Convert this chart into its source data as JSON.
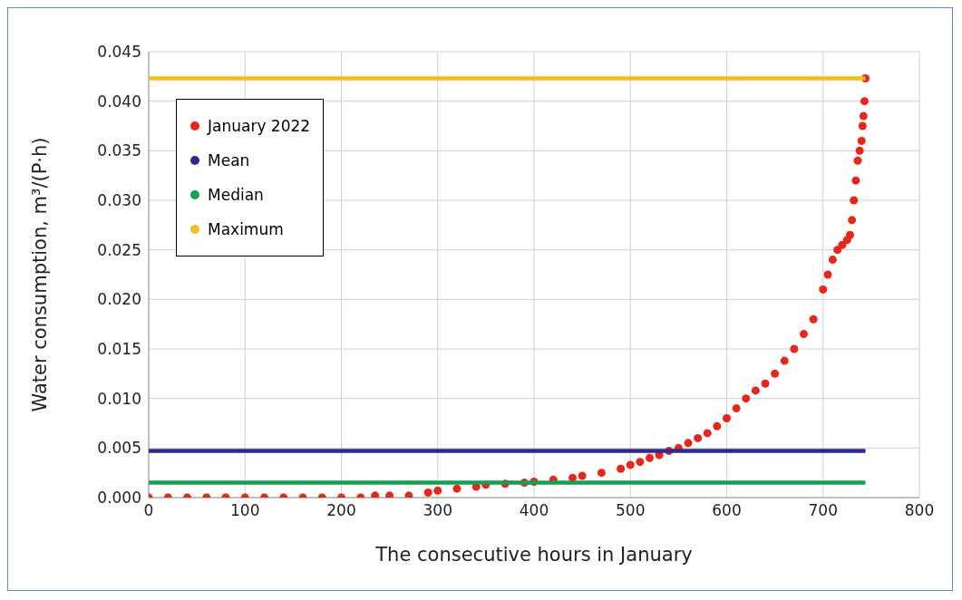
{
  "chart_data": {
    "type": "scatter",
    "xlabel": "The consecutive hours in January",
    "ylabel": "Water consumption, m³/(P·h)",
    "xlim": [
      0,
      800
    ],
    "xticks": [
      0,
      100,
      200,
      300,
      400,
      500,
      600,
      700,
      800
    ],
    "ylim": [
      0,
      0.045
    ],
    "yticks": [
      {
        "value": 0,
        "label": "0.000"
      },
      0.005,
      {
        "value": 0.01,
        "label": "0.010"
      },
      0.015,
      {
        "value": 0.02,
        "label": "0.020"
      },
      0.025,
      {
        "value": 0.03,
        "label": "0.030"
      },
      0.035,
      {
        "value": 0.04,
        "label": "0.040"
      },
      0.045
    ],
    "grid": true,
    "legend": "top left",
    "marker": "circle",
    "series": [
      {
        "name": "January 2022",
        "type": "scatter",
        "color": "#e8261c",
        "x": [
          0,
          20,
          40,
          60,
          80,
          100,
          120,
          140,
          160,
          180,
          200,
          220,
          235,
          250,
          270,
          290,
          300,
          320,
          340,
          350,
          370,
          390,
          400,
          420,
          440,
          450,
          470,
          490,
          500,
          510,
          520,
          530,
          540,
          550,
          560,
          570,
          580,
          590,
          600,
          610,
          620,
          630,
          640,
          650,
          660,
          670,
          680,
          690,
          700,
          705,
          710,
          715,
          720,
          725,
          728,
          730,
          732,
          734,
          736,
          738,
          740,
          741,
          742,
          743,
          744
        ],
        "values": [
          0,
          0,
          0,
          0,
          0,
          0,
          0,
          0,
          0,
          0,
          0,
          0,
          0.0002,
          0.0002,
          0.0002,
          0.0005,
          0.0007,
          0.0009,
          0.0011,
          0.0013,
          0.0014,
          0.0015,
          0.0016,
          0.0018,
          0.002,
          0.0022,
          0.0025,
          0.0029,
          0.0033,
          0.0036,
          0.004,
          0.0043,
          0.0047,
          0.005,
          0.0055,
          0.006,
          0.0065,
          0.0072,
          0.008,
          0.009,
          0.01,
          0.0108,
          0.0115,
          0.0125,
          0.0138,
          0.015,
          0.0165,
          0.018,
          0.021,
          0.0225,
          0.024,
          0.025,
          0.0255,
          0.026,
          0.0265,
          0.028,
          0.03,
          0.032,
          0.034,
          0.035,
          0.036,
          0.0375,
          0.0385,
          0.04,
          0.0423
        ]
      },
      {
        "name": "Mean",
        "type": "line",
        "marker": "none",
        "color": "#2e2a8c",
        "x": [
          0,
          744
        ],
        "values": [
          0.0047,
          0.0047
        ]
      },
      {
        "name": "Median",
        "type": "line",
        "marker": "none",
        "color": "#14a050",
        "x": [
          0,
          744
        ],
        "values": [
          0.0015,
          0.0015
        ]
      },
      {
        "name": "Maximum",
        "type": "line",
        "marker": "none",
        "color": "#f5bd1f",
        "x": [
          0,
          744
        ],
        "values": [
          0.0423,
          0.0423
        ]
      }
    ]
  }
}
